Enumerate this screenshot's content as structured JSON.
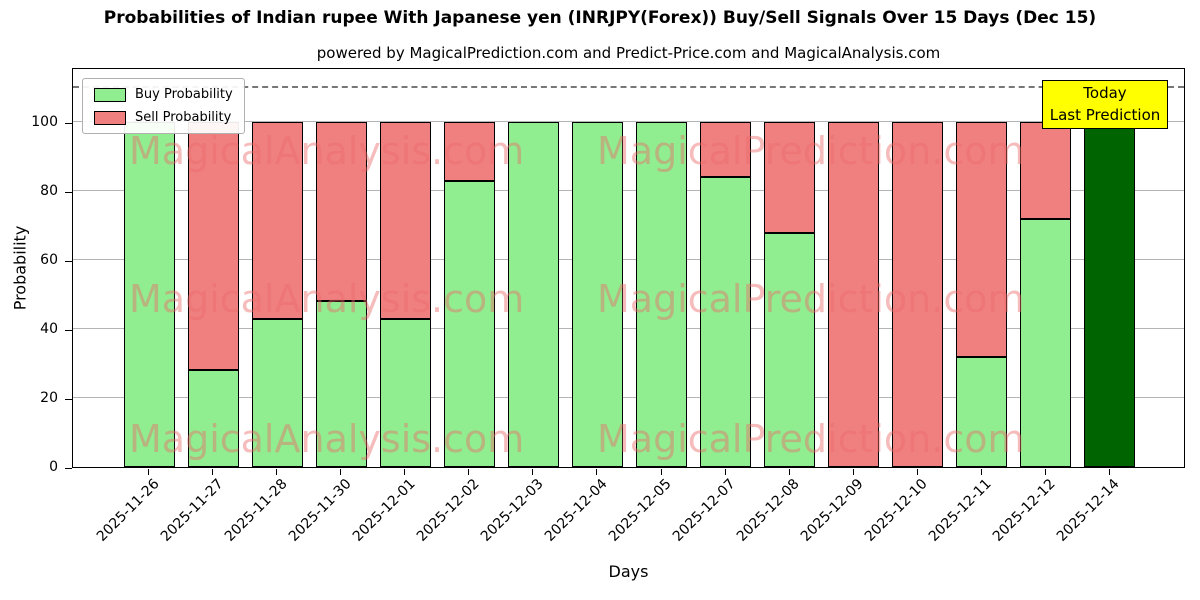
{
  "chart_data": {
    "type": "bar",
    "stacked": true,
    "title": "Probabilities of Indian rupee With Japanese yen (INRJPY(Forex)) Buy/Sell Signals Over 15 Days (Dec 15)",
    "subtitle": "powered by MagicalPrediction.com and Predict-Price.com and MagicalAnalysis.com",
    "xlabel": "Days",
    "ylabel": "Probability",
    "ylim": [
      0,
      116
    ],
    "yticks": [
      0,
      20,
      40,
      60,
      80,
      100
    ],
    "grid": "horizontal",
    "dashed_line_y": 110,
    "legend_position": "top-left",
    "categories": [
      "2025-11-26",
      "2025-11-27",
      "2025-11-28",
      "2025-11-30",
      "2025-12-01",
      "2025-12-02",
      "2025-12-03",
      "2025-12-04",
      "2025-12-05",
      "2025-12-07",
      "2025-12-08",
      "2025-12-09",
      "2025-12-10",
      "2025-12-11",
      "2025-12-12",
      "2025-12-14"
    ],
    "series": [
      {
        "name": "Buy Probability",
        "color": "#90ee90",
        "values": [
          100,
          28,
          43,
          48,
          43,
          83,
          100,
          100,
          100,
          84,
          68,
          0,
          0,
          32,
          72,
          100
        ]
      },
      {
        "name": "Sell Probability",
        "color": "#f08080",
        "values": [
          0,
          72,
          57,
          52,
          57,
          17,
          0,
          0,
          0,
          16,
          32,
          100,
          100,
          68,
          28,
          0
        ]
      }
    ],
    "bar_edge_color": "#000000",
    "highlight_bar": {
      "index": 15,
      "color": "#006400"
    },
    "annotation": {
      "lines": [
        "Today",
        "Last Prediction"
      ],
      "bg_color": "#ffff00"
    },
    "watermarks": [
      "MagicalAnalysis.com",
      "MagicalPrediction.com"
    ]
  }
}
